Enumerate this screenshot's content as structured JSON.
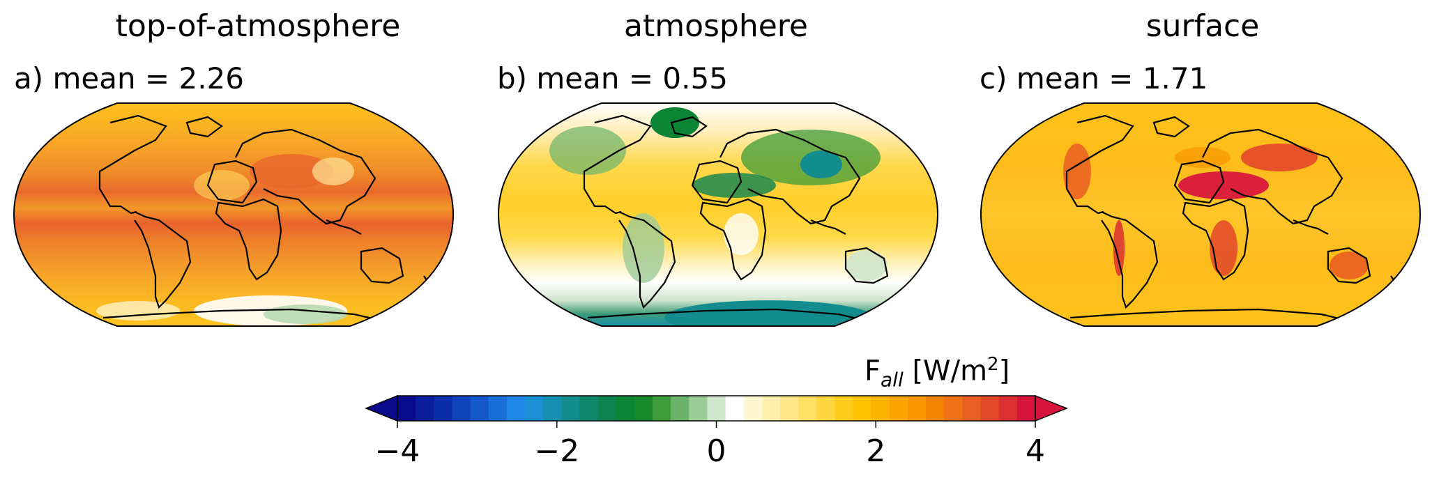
{
  "panels": [
    {
      "title": "top-of-atmosphere",
      "label": "a) mean = 2.26",
      "mean": 2.26
    },
    {
      "title": "atmosphere",
      "label": "b) mean = 0.55",
      "mean": 0.55
    },
    {
      "title": "surface",
      "label": "c) mean = 1.71",
      "mean": 1.71
    }
  ],
  "colorbar": {
    "label_main": "F",
    "label_sub": "all",
    "label_units_open": " [W/m",
    "label_units_sup": "2",
    "label_units_close": "]",
    "min": -4,
    "max": 4,
    "step": 0.25,
    "ticks": [
      {
        "value": -4,
        "text": "−4"
      },
      {
        "value": -2,
        "text": "−2"
      },
      {
        "value": 0,
        "text": "0"
      },
      {
        "value": 2,
        "text": "2"
      },
      {
        "value": 4,
        "text": "4"
      }
    ],
    "colors": [
      "#0a0a8c",
      "#0b1d9a",
      "#0c2fa9",
      "#1143bb",
      "#1458c9",
      "#196fd8",
      "#1e87e8",
      "#1a8fd3",
      "#1690b0",
      "#138c8e",
      "#0f876c",
      "#0c8350",
      "#0b8436",
      "#15892b",
      "#3f9c3b",
      "#6bb36b",
      "#9dcb97",
      "#cfe5cc",
      "#ffffff",
      "#fff6d4",
      "#fff0b0",
      "#ffe78a",
      "#ffdf64",
      "#ffd640",
      "#ffcc1c",
      "#fec300",
      "#fdb400",
      "#fca500",
      "#f89600",
      "#f48400",
      "#ef7118",
      "#e95e22",
      "#e3472a",
      "#dc2f33",
      "#d7143c"
    ],
    "extend": "both"
  },
  "colors": {
    "ocean_toa": "#f19a2c",
    "ocean_atm": "#ffd43a",
    "ocean_sfc": "#fec21c",
    "coast": "#000000"
  }
}
